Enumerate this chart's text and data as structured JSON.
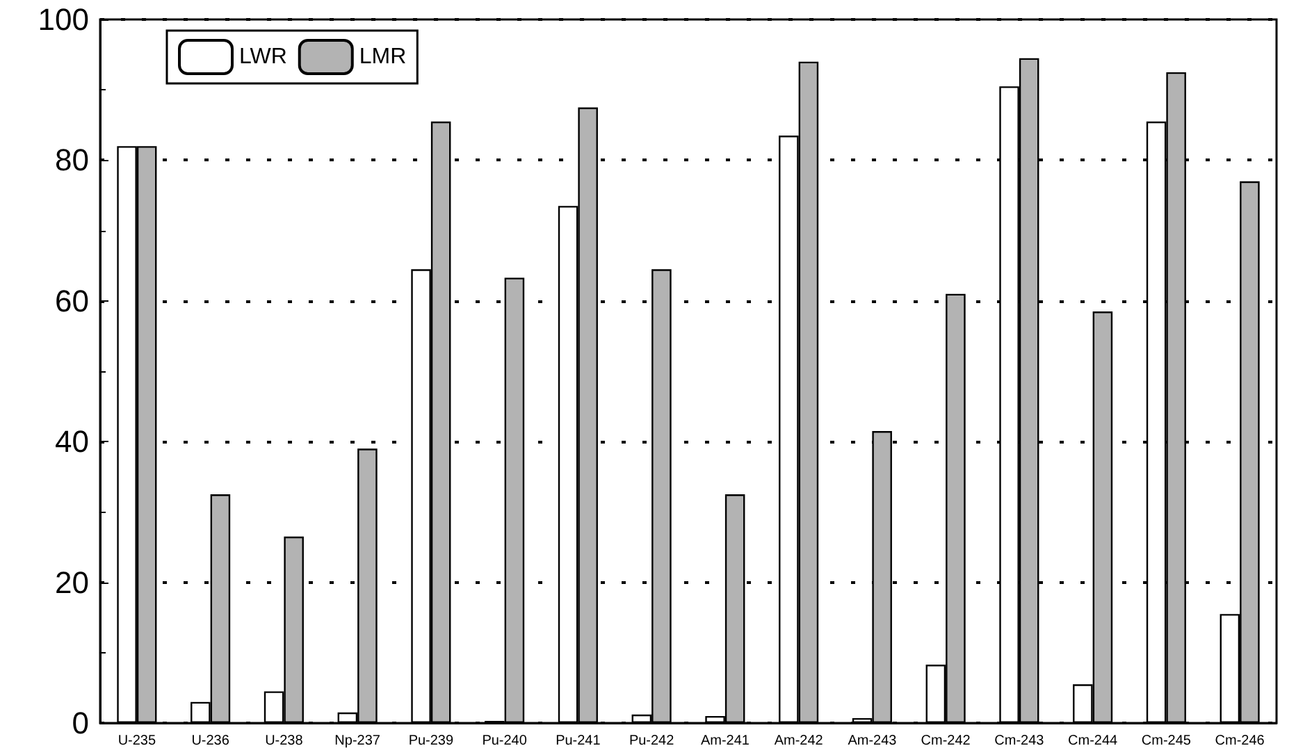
{
  "chart_data": {
    "type": "bar",
    "categories": [
      "U-235",
      "U-236",
      "U-238",
      "Np-237",
      "Pu-239",
      "Pu-240",
      "Pu-241",
      "Pu-242",
      "Am-241",
      "Am-242",
      "Am-243",
      "Cm-242",
      "Cm-243",
      "Cm-244",
      "Cm-245",
      "Cm-246"
    ],
    "series": [
      {
        "name": "LWR",
        "color": "#ffffff",
        "values": [
          82,
          3,
          4.5,
          1.5,
          64.5,
          0.3,
          73.5,
          1.2,
          1,
          83.5,
          0.7,
          8.3,
          90.5,
          5.5,
          85.5,
          15.5
        ]
      },
      {
        "name": "LMR",
        "color": "#b3b3b3",
        "values": [
          82,
          32.5,
          26.5,
          39,
          85.5,
          63.3,
          87.5,
          64.5,
          32.5,
          94,
          41.5,
          61,
          94.5,
          58.5,
          92.5,
          77
        ]
      }
    ],
    "ylim": [
      0,
      100
    ],
    "yticks": [
      0,
      20,
      40,
      60,
      80,
      100
    ],
    "grid": "y",
    "legend": "top left"
  }
}
